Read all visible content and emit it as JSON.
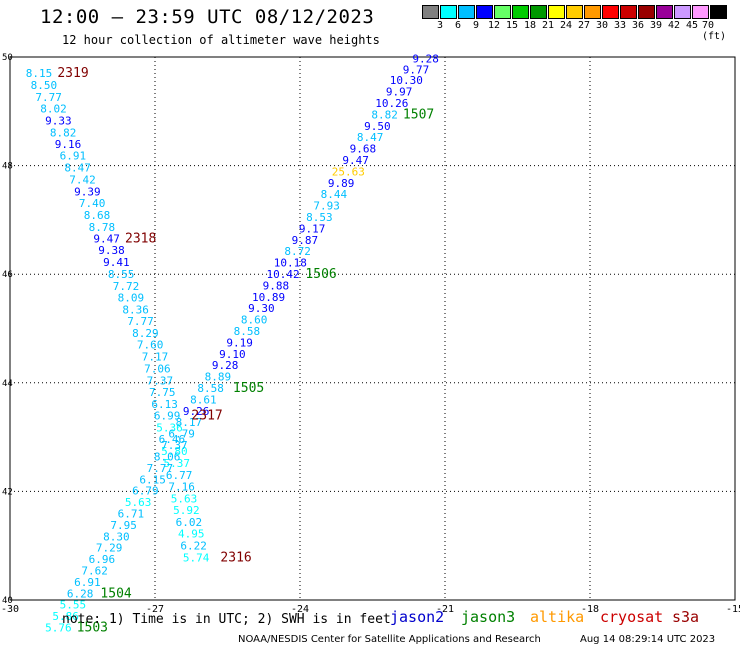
{
  "header": {
    "title": "12:00 – 23:59 UTC 08/12/2023",
    "subtitle": "12 hour collection of altimeter wave heights"
  },
  "colorbar": {
    "colors": [
      "#808080",
      "#00ffff",
      "#00bfff",
      "#0000ff",
      "#66ff66",
      "#00cc00",
      "#009900",
      "#ffff00",
      "#ffcc00",
      "#ff9900",
      "#ff0000",
      "#cc0000",
      "#990000",
      "#990099",
      "#cc99ff",
      "#ff99ff",
      "#000000"
    ],
    "labels": [
      "3",
      "6",
      "9",
      "12",
      "15",
      "18",
      "21",
      "24",
      "27",
      "30",
      "33",
      "36",
      "39",
      "42",
      "45",
      "70 (ft)"
    ]
  },
  "map": {
    "lon_range": [
      -30,
      -15
    ],
    "lat_range": [
      40,
      50
    ],
    "x_ticks": [
      -30,
      -27,
      -24,
      -21,
      -18,
      -15
    ],
    "x_tick_labels": [
      "-30",
      "-27",
      "-24",
      "-21",
      "-18",
      "-15"
    ],
    "y_ticks": [
      40,
      42,
      44,
      46,
      48,
      50
    ],
    "y_tick_labels": [
      "40",
      "42",
      "44",
      "46",
      "48",
      "50"
    ],
    "grid": true,
    "grid_style": "dotted"
  },
  "chart_data": {
    "type": "scatter",
    "x_unit": "degrees longitude",
    "y_unit": "degrees latitude",
    "value_unit": "ft",
    "tracks": [
      {
        "pass_labels": [
          "2319",
          "2318",
          "2317",
          "2316"
        ],
        "pass_label_color": "#800000",
        "satellite": "cryosat",
        "points": [
          {
            "lon": -29.4,
            "lat": 49.63,
            "v": "8.15"
          },
          {
            "lon": -29.3,
            "lat": 49.41,
            "v": "8.50"
          },
          {
            "lon": -29.2,
            "lat": 49.19,
            "v": "7.77"
          },
          {
            "lon": -29.1,
            "lat": 48.98,
            "v": "8.02"
          },
          {
            "lon": -29.0,
            "lat": 48.76,
            "v": "9.33"
          },
          {
            "lon": -28.9,
            "lat": 48.54,
            "v": "8.82"
          },
          {
            "lon": -28.8,
            "lat": 48.32,
            "v": "9.16"
          },
          {
            "lon": -28.7,
            "lat": 48.11,
            "v": "6.91"
          },
          {
            "lon": -28.6,
            "lat": 47.89,
            "v": "8.47"
          },
          {
            "lon": -28.5,
            "lat": 47.67,
            "v": "7.42"
          },
          {
            "lon": -28.4,
            "lat": 47.45,
            "v": "9.39"
          },
          {
            "lon": -28.3,
            "lat": 47.24,
            "v": "7.40"
          },
          {
            "lon": -28.2,
            "lat": 47.02,
            "v": "8.68"
          },
          {
            "lon": -28.1,
            "lat": 46.8,
            "v": "8.78"
          },
          {
            "lon": -28.0,
            "lat": 46.58,
            "v": "9.47"
          },
          {
            "lon": -27.9,
            "lat": 46.37,
            "v": "9.38"
          },
          {
            "lon": -27.8,
            "lat": 46.15,
            "v": "9.41"
          },
          {
            "lon": -27.7,
            "lat": 45.93,
            "v": "8.55"
          },
          {
            "lon": -27.6,
            "lat": 45.71,
            "v": "7.72"
          },
          {
            "lon": -27.5,
            "lat": 45.5,
            "v": "8.09"
          },
          {
            "lon": -27.4,
            "lat": 45.28,
            "v": "8.36"
          },
          {
            "lon": -27.3,
            "lat": 45.06,
            "v": "7.77"
          },
          {
            "lon": -27.2,
            "lat": 44.84,
            "v": "8.29"
          },
          {
            "lon": -27.1,
            "lat": 44.63,
            "v": "7.60"
          },
          {
            "lon": -27.0,
            "lat": 44.41,
            "v": "7.17"
          },
          {
            "lon": -26.95,
            "lat": 44.19,
            "v": "7.06"
          },
          {
            "lon": -26.9,
            "lat": 43.97,
            "v": "7.37"
          },
          {
            "lon": -26.85,
            "lat": 43.76,
            "v": "7.75"
          },
          {
            "lon": -26.8,
            "lat": 43.54,
            "v": "6.13"
          },
          {
            "lon": -26.75,
            "lat": 43.32,
            "v": "6.99"
          },
          {
            "lon": -26.7,
            "lat": 43.1,
            "v": "5.36"
          },
          {
            "lon": -26.65,
            "lat": 42.89,
            "v": "6.46"
          },
          {
            "lon": -26.6,
            "lat": 42.67,
            "v": "5.80"
          },
          {
            "lon": -26.55,
            "lat": 42.45,
            "v": "5.37"
          },
          {
            "lon": -26.5,
            "lat": 42.23,
            "v": "6.77"
          },
          {
            "lon": -26.45,
            "lat": 42.02,
            "v": "7.16"
          },
          {
            "lon": -26.4,
            "lat": 41.8,
            "v": "5.63"
          },
          {
            "lon": -26.35,
            "lat": 41.58,
            "v": "5.92"
          },
          {
            "lon": -26.3,
            "lat": 41.36,
            "v": "6.02"
          },
          {
            "lon": -26.25,
            "lat": 41.15,
            "v": "4.95"
          },
          {
            "lon": -26.2,
            "lat": 40.93,
            "v": "6.22"
          },
          {
            "lon": -26.15,
            "lat": 40.71,
            "v": "5.74"
          }
        ]
      },
      {
        "pass_labels": [
          "1507",
          "1506",
          "1505",
          "1504",
          "1503"
        ],
        "pass_label_color": "#008000",
        "satellite": "jason3",
        "points": [
          {
            "lon": -21.4,
            "lat": 49.9,
            "v": "9.28"
          },
          {
            "lon": -21.6,
            "lat": 49.7,
            "v": "9.77"
          },
          {
            "lon": -21.8,
            "lat": 49.5,
            "v": "10.30"
          },
          {
            "lon": -21.95,
            "lat": 49.29,
            "v": "9.97"
          },
          {
            "lon": -22.1,
            "lat": 49.08,
            "v": "10.26"
          },
          {
            "lon": -22.25,
            "lat": 48.87,
            "v": "8.82"
          },
          {
            "lon": -22.4,
            "lat": 48.66,
            "v": "9.50"
          },
          {
            "lon": -22.55,
            "lat": 48.45,
            "v": "8.47"
          },
          {
            "lon": -22.7,
            "lat": 48.24,
            "v": "9.68"
          },
          {
            "lon": -22.85,
            "lat": 48.03,
            "v": "9.47"
          },
          {
            "lon": -23.0,
            "lat": 47.82,
            "v": "25.63"
          },
          {
            "lon": -23.15,
            "lat": 47.61,
            "v": "9.89"
          },
          {
            "lon": -23.3,
            "lat": 47.4,
            "v": "8.44"
          },
          {
            "lon": -23.45,
            "lat": 47.19,
            "v": "7.93"
          },
          {
            "lon": -23.6,
            "lat": 46.98,
            "v": "8.53"
          },
          {
            "lon": -23.75,
            "lat": 46.77,
            "v": "9.17"
          },
          {
            "lon": -23.9,
            "lat": 46.56,
            "v": "9.87"
          },
          {
            "lon": -24.05,
            "lat": 46.35,
            "v": "8.72"
          },
          {
            "lon": -24.2,
            "lat": 46.14,
            "v": "10.18"
          },
          {
            "lon": -24.35,
            "lat": 45.93,
            "v": "10.42"
          },
          {
            "lon": -24.5,
            "lat": 45.72,
            "v": "9.88"
          },
          {
            "lon": -24.65,
            "lat": 45.51,
            "v": "10.89"
          },
          {
            "lon": -24.8,
            "lat": 45.3,
            "v": "9.30"
          },
          {
            "lon": -24.95,
            "lat": 45.09,
            "v": "8.60"
          },
          {
            "lon": -25.1,
            "lat": 44.88,
            "v": "8.58"
          },
          {
            "lon": -25.25,
            "lat": 44.67,
            "v": "9.19"
          },
          {
            "lon": -25.4,
            "lat": 44.46,
            "v": "9.10"
          },
          {
            "lon": -25.55,
            "lat": 44.25,
            "v": "9.28"
          },
          {
            "lon": -25.7,
            "lat": 44.04,
            "v": "8.89"
          },
          {
            "lon": -25.85,
            "lat": 43.83,
            "v": "8.58"
          },
          {
            "lon": -26.0,
            "lat": 43.62,
            "v": "8.61"
          },
          {
            "lon": -26.15,
            "lat": 43.41,
            "v": "9.26"
          },
          {
            "lon": -26.3,
            "lat": 43.2,
            "v": "8.17"
          },
          {
            "lon": -26.45,
            "lat": 42.99,
            "v": "6.79"
          },
          {
            "lon": -26.6,
            "lat": 42.78,
            "v": "7.37"
          },
          {
            "lon": -26.75,
            "lat": 42.57,
            "v": "8.06"
          },
          {
            "lon": -26.9,
            "lat": 42.36,
            "v": "7.77"
          },
          {
            "lon": -27.05,
            "lat": 42.15,
            "v": "6.15"
          },
          {
            "lon": -27.2,
            "lat": 41.94,
            "v": "6.79"
          },
          {
            "lon": -27.35,
            "lat": 41.73,
            "v": "5.63"
          },
          {
            "lon": -27.5,
            "lat": 41.52,
            "v": "6.71"
          },
          {
            "lon": -27.65,
            "lat": 41.31,
            "v": "7.95"
          },
          {
            "lon": -27.8,
            "lat": 41.1,
            "v": "8.30"
          },
          {
            "lon": -27.95,
            "lat": 40.89,
            "v": "7.29"
          },
          {
            "lon": -28.1,
            "lat": 40.68,
            "v": "6.96"
          },
          {
            "lon": -28.25,
            "lat": 40.47,
            "v": "7.62"
          },
          {
            "lon": -28.4,
            "lat": 40.26,
            "v": "6.91"
          },
          {
            "lon": -28.55,
            "lat": 40.05,
            "v": "6.28"
          },
          {
            "lon": -28.7,
            "lat": 39.84,
            "v": "5.55"
          },
          {
            "lon": -28.85,
            "lat": 39.63,
            "v": "5.86"
          },
          {
            "lon": -29.0,
            "lat": 39.42,
            "v": "5.76"
          }
        ]
      }
    ]
  },
  "footer": {
    "note": "note: 1) Time is in UTC; 2) SWH is in feet",
    "satellites": [
      {
        "name": "jason2",
        "color": "#0000cc"
      },
      {
        "name": "jason3",
        "color": "#008000"
      },
      {
        "name": "altika",
        "color": "#ff9900"
      },
      {
        "name": "cryosat",
        "color": "#cc0000"
      },
      {
        "name": "s3a",
        "color": "#990000"
      }
    ],
    "credit": "NOAA/NESDIS Center for Satellite Applications and Research",
    "timestamp": "Aug 14 08:29:14 UTC 2023"
  }
}
